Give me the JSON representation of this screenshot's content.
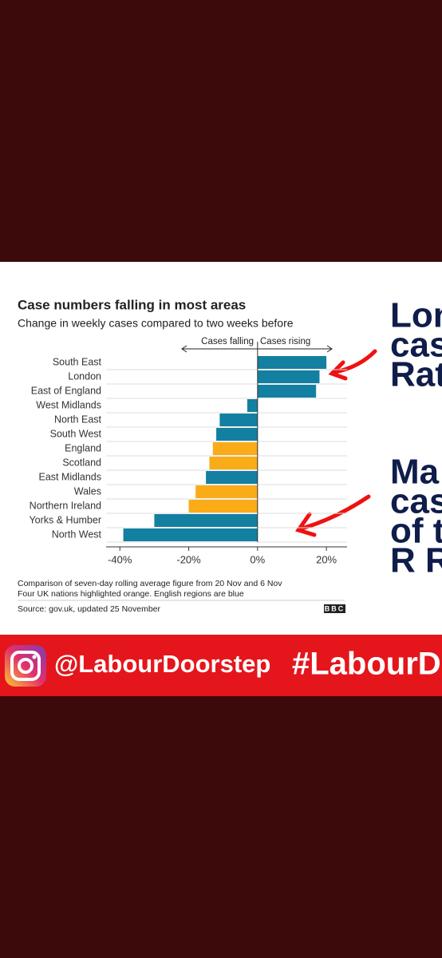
{
  "chart_data": {
    "type": "barh",
    "title": "Case numbers falling in most areas",
    "subtitle": "Change in weekly cases compared to two weeks before",
    "annotations": [
      "Cases falling",
      "Cases rising"
    ],
    "categories": [
      "South East",
      "London",
      "East of England",
      "West Midlands",
      "North East",
      "South West",
      "England",
      "Scotland",
      "East Midlands",
      "Wales",
      "Northern Ireland",
      "Yorks & Humber",
      "North West"
    ],
    "values": [
      20,
      18,
      17,
      -3,
      -11,
      -12,
      -13,
      -14,
      -15,
      -18,
      -20,
      -30,
      -39
    ],
    "colors": [
      "#1380a1",
      "#1380a1",
      "#1380a1",
      "#1380a1",
      "#1380a1",
      "#1380a1",
      "#faab18",
      "#faab18",
      "#1380a1",
      "#faab18",
      "#faab18",
      "#1380a1",
      "#1380a1"
    ],
    "xlim": [
      -44,
      26
    ],
    "xticks": [
      {
        "value": -40,
        "label": "-40%"
      },
      {
        "value": -20,
        "label": "-20%"
      },
      {
        "value": 0,
        "label": "0%"
      },
      {
        "value": 20,
        "label": "20%"
      }
    ],
    "grid": true,
    "footnotes": [
      "Comparison of seven-day rolling average figure from 20 Nov and 6 Nov",
      "Four UK nations highlighted orange. English regions are blue"
    ],
    "source": "Source: gov.uk, updated 25 November",
    "logo": "BBC"
  },
  "side_text": {
    "block1": [
      "Lon",
      "cas",
      "Rat"
    ],
    "block2": [
      "Ma",
      "cas",
      "of th",
      "R Ra"
    ]
  },
  "banner": {
    "handle": "@LabourDoorstep",
    "hashtag": "#LabourD"
  }
}
